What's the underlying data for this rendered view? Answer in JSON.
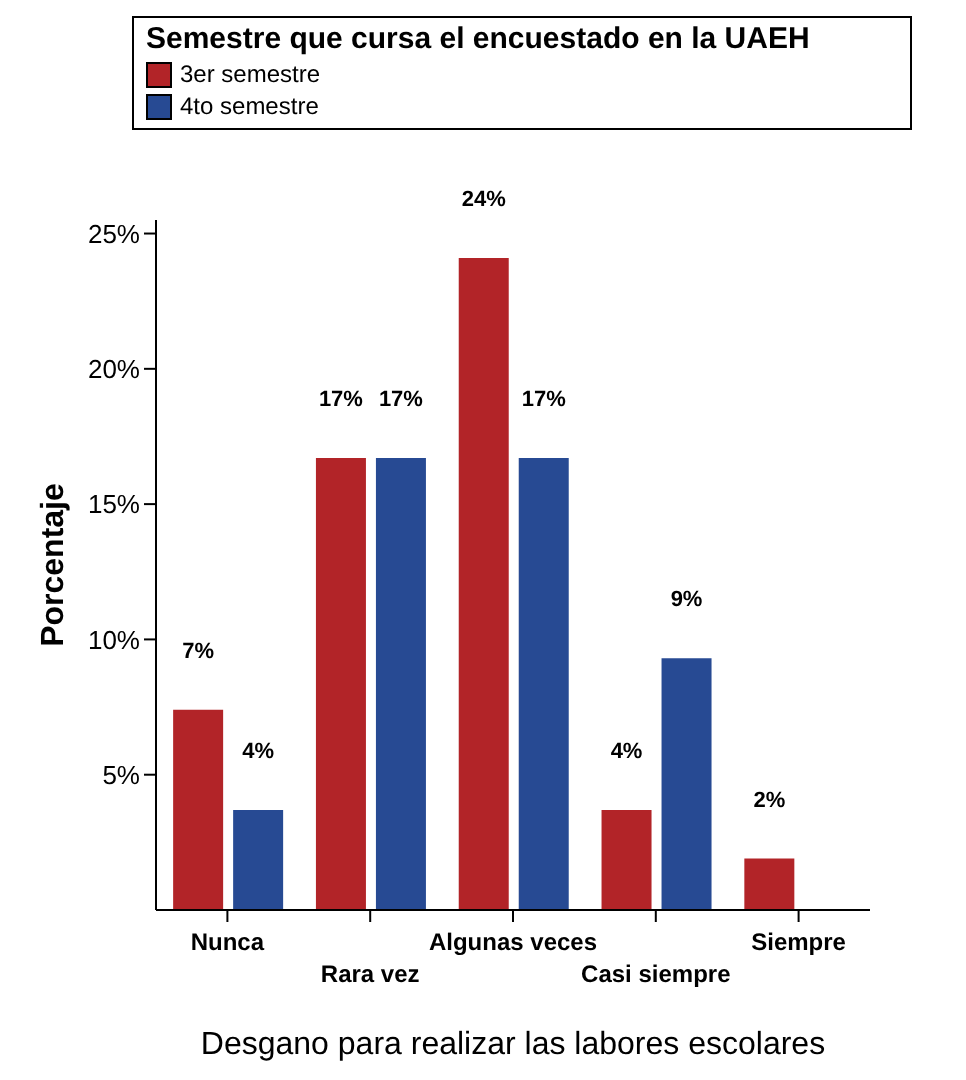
{
  "chart_data": {
    "type": "bar",
    "xlabel": "Desgano para realizar las labores escolares",
    "ylabel": "Porcentaje",
    "legend_title": "Semestre que cursa el encuestado en la UAEH",
    "legend": "top",
    "grid": false,
    "categories": [
      "Nunca",
      "Rara vez",
      "Algunas veces",
      "Casi siempre",
      "Siempre"
    ],
    "ylim": [
      0,
      25.5
    ],
    "yticks": [
      {
        "value": 5,
        "label": "5%"
      },
      {
        "value": 10,
        "label": "10%"
      },
      {
        "value": 15,
        "label": "15%"
      },
      {
        "value": 20,
        "label": "20%"
      },
      {
        "value": 25,
        "label": "25%"
      }
    ],
    "series": [
      {
        "name": "3er semestre",
        "color": "#b22428",
        "values": [
          7.4,
          16.7,
          24.1,
          3.7,
          1.9
        ],
        "value_labels": [
          "7%",
          "17%",
          "24%",
          "4%",
          "2%"
        ]
      },
      {
        "name": "4to semestre",
        "color": "#274a93",
        "values": [
          3.7,
          16.7,
          16.7,
          9.3,
          null
        ],
        "value_labels": [
          "4%",
          "17%",
          "17%",
          "9%",
          null
        ]
      }
    ]
  }
}
